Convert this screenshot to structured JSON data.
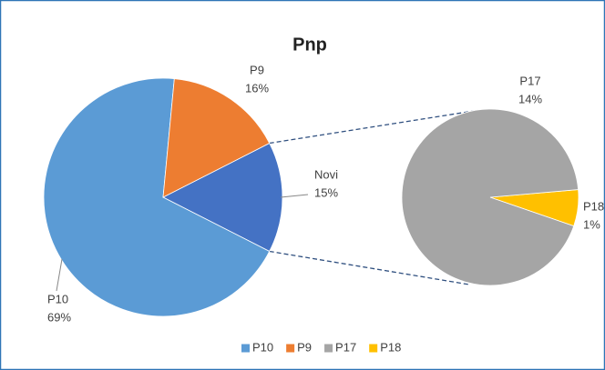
{
  "chart_data": {
    "type": "pie-of-pie",
    "title": "Pnp",
    "categories": [
      "P10",
      "P9"
    ],
    "values": [
      69,
      16
    ],
    "value_labels": [
      "69%",
      "16%"
    ],
    "colors": [
      "#5b9bd5",
      "#ed7d31"
    ],
    "other": {
      "label": "Novi",
      "value": 15,
      "value_label": "15%",
      "color": "#4472c4",
      "categories": [
        "P17",
        "P18"
      ],
      "values": [
        14,
        1
      ],
      "value_labels": [
        "14%",
        "1%"
      ],
      "colors": [
        "#a5a5a5",
        "#ffc000"
      ]
    },
    "legend": "bottom"
  }
}
